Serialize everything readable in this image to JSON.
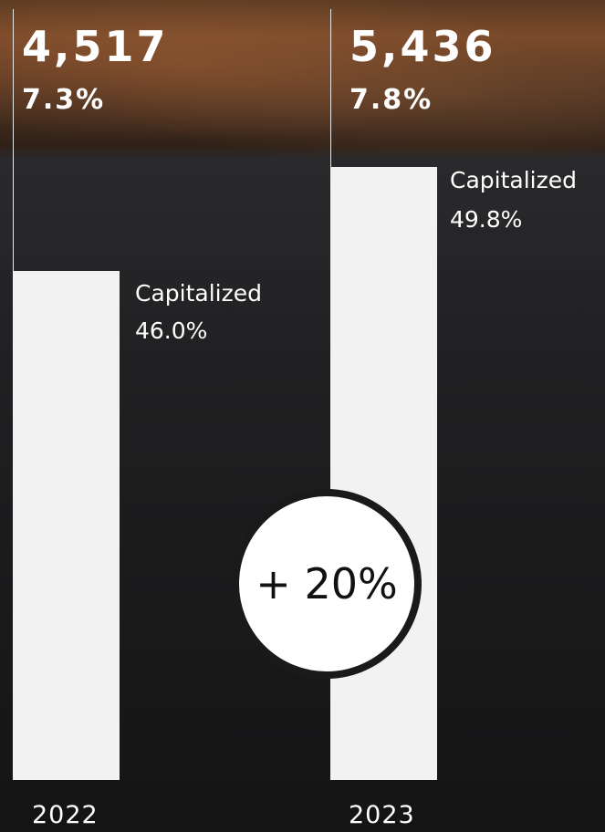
{
  "columns": [
    {
      "total": "4,517",
      "share": "7.3%",
      "label": "Capitalized",
      "capitalized": "46.0%",
      "year": "2022"
    },
    {
      "total": "5,436",
      "share": "7.8%",
      "label": "Capitalized",
      "capitalized": "49.8%",
      "year": "2023"
    }
  ],
  "badge": "+ 20%"
}
